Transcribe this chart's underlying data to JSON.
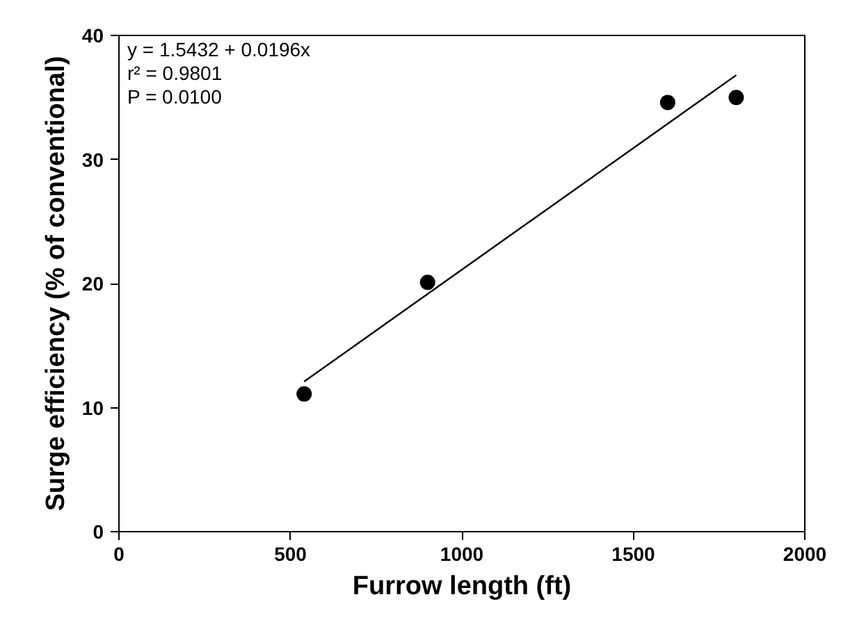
{
  "chart_data": {
    "type": "scatter",
    "xlabel": "Furrow length (ft)",
    "ylabel": "Surge efficiency (% of conventional)",
    "series": [
      {
        "x": [
          540,
          900,
          1600,
          1800
        ],
        "values": [
          11.1,
          20.1,
          34.6,
          35.0
        ],
        "color": "#000000",
        "marker": "circle"
      },
      {
        "type": "line",
        "x": [
          540,
          1800
        ],
        "values": [
          12.1,
          36.8
        ],
        "color": "#000000",
        "marker": "none"
      }
    ],
    "xlim": [
      0,
      2000
    ],
    "ylim": [
      0,
      40
    ],
    "xticks": [
      0,
      500,
      1000,
      1500,
      2000
    ],
    "yticks": [
      0,
      10,
      20,
      30,
      40
    ],
    "grid": false,
    "annotations": [
      "y = 1.5432 + 0.0196x",
      "r² = 0.9801",
      "P = 0.0100"
    ]
  }
}
